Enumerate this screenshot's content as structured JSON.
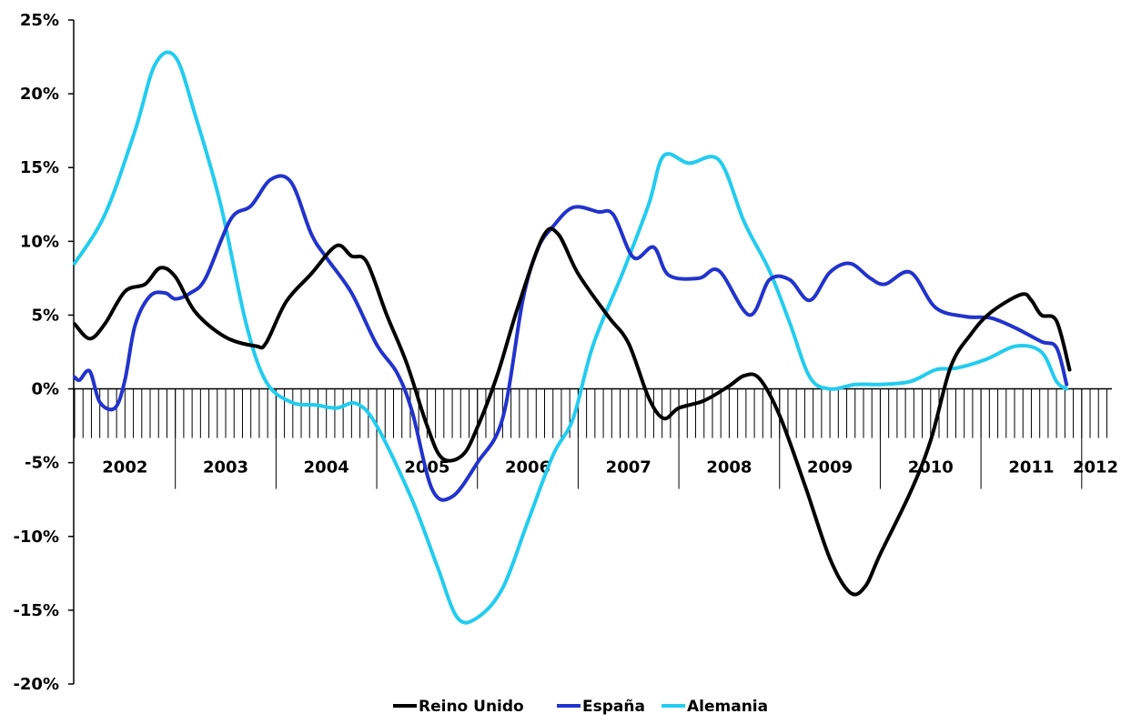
{
  "chart_data": {
    "type": "line",
    "yformat": "percent",
    "ylim": [
      -20,
      25
    ],
    "yticks": [
      "25%",
      "20%",
      "15%",
      "10%",
      "5%",
      "0%",
      "-5%",
      "-10%",
      "-15%",
      "-20%"
    ],
    "year_labels": [
      "2002",
      "2003",
      "2004",
      "2005",
      "2006",
      "2007",
      "2008",
      "2009",
      "2010",
      "2011",
      "2012"
    ],
    "legend_position": "bottom",
    "x_note": "x values are in years (decimal, e.g. 2002.5 = mid-2002)",
    "series": [
      {
        "name": "Reino Unido",
        "color": "#000000",
        "points": [
          [
            2002.0,
            4.4
          ],
          [
            2002.15,
            3.4
          ],
          [
            2002.3,
            4.4
          ],
          [
            2002.5,
            6.6
          ],
          [
            2002.7,
            7.1
          ],
          [
            2002.85,
            8.2
          ],
          [
            2003.0,
            7.6
          ],
          [
            2003.2,
            5.2
          ],
          [
            2003.5,
            3.5
          ],
          [
            2003.8,
            2.9
          ],
          [
            2003.9,
            3.1
          ],
          [
            2004.1,
            5.9
          ],
          [
            2004.35,
            7.8
          ],
          [
            2004.6,
            9.7
          ],
          [
            2004.75,
            9.0
          ],
          [
            2004.9,
            8.6
          ],
          [
            2005.1,
            5.0
          ],
          [
            2005.3,
            1.7
          ],
          [
            2005.5,
            -2.5
          ],
          [
            2005.65,
            -4.7
          ],
          [
            2005.85,
            -4.5
          ],
          [
            2006.0,
            -2.6
          ],
          [
            2006.2,
            1.0
          ],
          [
            2006.4,
            5.5
          ],
          [
            2006.65,
            10.3
          ],
          [
            2006.8,
            10.5
          ],
          [
            2007.0,
            7.8
          ],
          [
            2007.3,
            4.9
          ],
          [
            2007.5,
            3.1
          ],
          [
            2007.7,
            -0.6
          ],
          [
            2007.85,
            -2.0
          ],
          [
            2008.0,
            -1.3
          ],
          [
            2008.25,
            -0.8
          ],
          [
            2008.5,
            0.2
          ],
          [
            2008.65,
            0.9
          ],
          [
            2008.8,
            0.7
          ],
          [
            2009.0,
            -1.8
          ],
          [
            2009.25,
            -6.5
          ],
          [
            2009.5,
            -11.5
          ],
          [
            2009.7,
            -13.8
          ],
          [
            2009.85,
            -13.4
          ],
          [
            2010.0,
            -11.2
          ],
          [
            2010.3,
            -7.0
          ],
          [
            2010.5,
            -3.5
          ],
          [
            2010.7,
            1.5
          ],
          [
            2010.9,
            3.7
          ],
          [
            2011.1,
            5.2
          ],
          [
            2011.4,
            6.4
          ],
          [
            2011.5,
            6.0
          ],
          [
            2011.6,
            5.0
          ],
          [
            2011.75,
            4.6
          ],
          [
            2011.88,
            1.3
          ]
        ]
      },
      {
        "name": "España",
        "color": "#2233cc",
        "points": [
          [
            2002.0,
            0.8
          ],
          [
            2002.05,
            0.6
          ],
          [
            2002.15,
            1.2
          ],
          [
            2002.25,
            -0.9
          ],
          [
            2002.4,
            -1.3
          ],
          [
            2002.5,
            0.6
          ],
          [
            2002.6,
            4.3
          ],
          [
            2002.75,
            6.3
          ],
          [
            2002.9,
            6.5
          ],
          [
            2003.0,
            6.1
          ],
          [
            2003.15,
            6.5
          ],
          [
            2003.3,
            7.5
          ],
          [
            2003.55,
            11.5
          ],
          [
            2003.75,
            12.4
          ],
          [
            2003.95,
            14.2
          ],
          [
            2004.15,
            14.0
          ],
          [
            2004.35,
            10.5
          ],
          [
            2004.5,
            8.9
          ],
          [
            2004.75,
            6.5
          ],
          [
            2005.0,
            3.0
          ],
          [
            2005.2,
            1.1
          ],
          [
            2005.35,
            -1.5
          ],
          [
            2005.55,
            -6.8
          ],
          [
            2005.75,
            -7.3
          ],
          [
            2006.0,
            -5.0
          ],
          [
            2006.25,
            -2.0
          ],
          [
            2006.45,
            6.0
          ],
          [
            2006.6,
            9.5
          ],
          [
            2006.75,
            11.0
          ],
          [
            2006.95,
            12.3
          ],
          [
            2007.2,
            12.0
          ],
          [
            2007.35,
            11.8
          ],
          [
            2007.55,
            8.9
          ],
          [
            2007.75,
            9.6
          ],
          [
            2007.9,
            7.7
          ],
          [
            2008.2,
            7.5
          ],
          [
            2008.4,
            8.0
          ],
          [
            2008.7,
            5.0
          ],
          [
            2008.9,
            7.4
          ],
          [
            2009.1,
            7.4
          ],
          [
            2009.3,
            6.0
          ],
          [
            2009.5,
            7.9
          ],
          [
            2009.7,
            8.5
          ],
          [
            2009.9,
            7.5
          ],
          [
            2010.05,
            7.1
          ],
          [
            2010.3,
            7.9
          ],
          [
            2010.55,
            5.5
          ],
          [
            2010.85,
            4.9
          ],
          [
            2011.1,
            4.8
          ],
          [
            2011.35,
            4.1
          ],
          [
            2011.6,
            3.2
          ],
          [
            2011.75,
            2.8
          ],
          [
            2011.85,
            0.3
          ]
        ]
      },
      {
        "name": "Alemania",
        "color": "#22ccee",
        "points": [
          [
            2002.0,
            8.5
          ],
          [
            2002.3,
            11.8
          ],
          [
            2002.6,
            17.5
          ],
          [
            2002.8,
            22.0
          ],
          [
            2003.0,
            22.5
          ],
          [
            2003.2,
            18.5
          ],
          [
            2003.45,
            12.5
          ],
          [
            2003.7,
            4.5
          ],
          [
            2003.9,
            0.5
          ],
          [
            2004.15,
            -0.9
          ],
          [
            2004.4,
            -1.1
          ],
          [
            2004.6,
            -1.3
          ],
          [
            2004.8,
            -1.0
          ],
          [
            2005.0,
            -2.5
          ],
          [
            2005.35,
            -7.5
          ],
          [
            2005.6,
            -12.0
          ],
          [
            2005.8,
            -15.5
          ],
          [
            2006.0,
            -15.5
          ],
          [
            2006.25,
            -13.5
          ],
          [
            2006.5,
            -9.0
          ],
          [
            2006.75,
            -4.5
          ],
          [
            2006.95,
            -2.0
          ],
          [
            2007.15,
            3.0
          ],
          [
            2007.45,
            8.0
          ],
          [
            2007.7,
            12.5
          ],
          [
            2007.85,
            15.8
          ],
          [
            2008.1,
            15.3
          ],
          [
            2008.4,
            15.5
          ],
          [
            2008.65,
            11.3
          ],
          [
            2008.9,
            8.0
          ],
          [
            2009.1,
            4.5
          ],
          [
            2009.3,
            0.8
          ],
          [
            2009.5,
            0.0
          ],
          [
            2009.75,
            0.3
          ],
          [
            2010.0,
            0.3
          ],
          [
            2010.3,
            0.5
          ],
          [
            2010.55,
            1.3
          ],
          [
            2010.75,
            1.4
          ],
          [
            2011.05,
            2.0
          ],
          [
            2011.35,
            2.9
          ],
          [
            2011.6,
            2.5
          ],
          [
            2011.75,
            0.5
          ],
          [
            2011.85,
            0.0
          ]
        ]
      }
    ]
  }
}
